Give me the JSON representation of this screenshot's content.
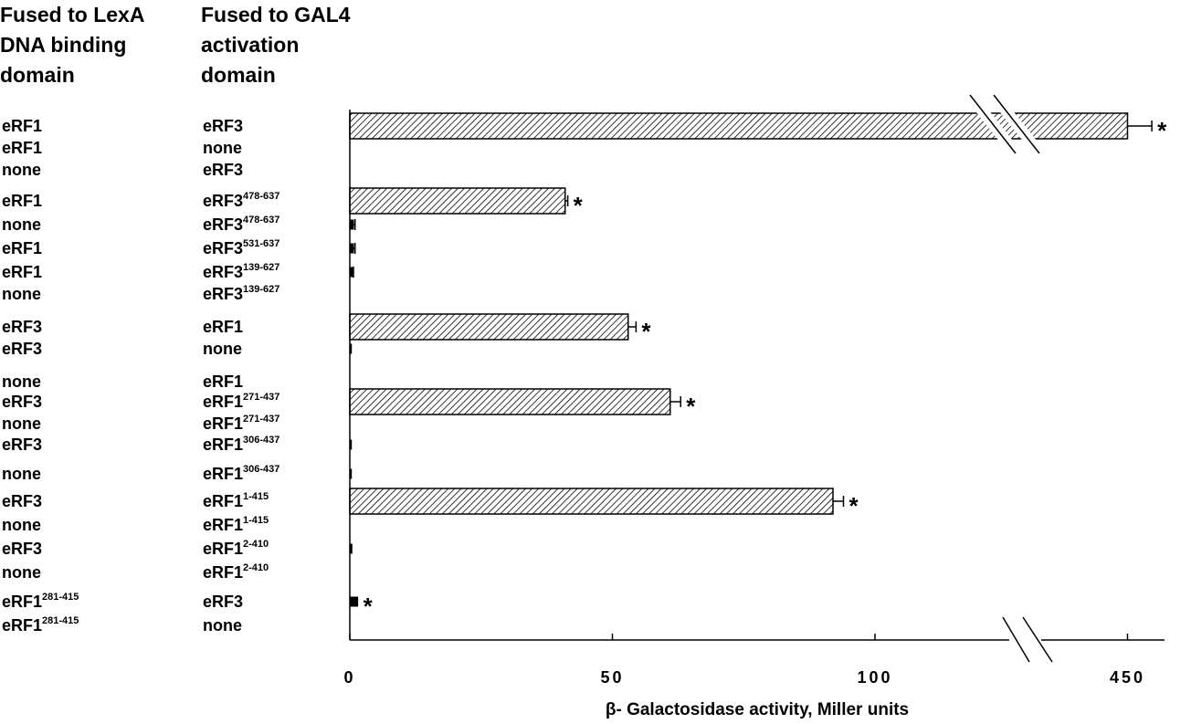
{
  "headers": {
    "lexa": [
      "Fused to LexA",
      "DNA binding",
      "domain"
    ],
    "gal4": [
      "Fused to GAL4",
      "activation",
      "domain"
    ]
  },
  "chart_data": {
    "type": "bar",
    "orientation": "horizontal",
    "xlabel": "β- Galactosidase activity, Miller units",
    "xticks": [
      "0",
      "50",
      "100",
      "450"
    ],
    "axis_break": "between 100 and 450",
    "rows": [
      {
        "lexa": "eRF1",
        "lexa_sup": "",
        "gal4": "eRF3",
        "gal4_sup": "",
        "value": 450,
        "error": 14,
        "significant": true
      },
      {
        "lexa": "eRF1",
        "lexa_sup": "",
        "gal4": "none",
        "gal4_sup": "",
        "value": 0,
        "error": 0,
        "significant": false
      },
      {
        "lexa": "none",
        "lexa_sup": "",
        "gal4": "eRF3",
        "gal4_sup": "",
        "value": 0,
        "error": 0,
        "significant": false
      },
      {
        "lexa": "eRF1",
        "lexa_sup": "",
        "gal4": "eRF3",
        "gal4_sup": "478-637",
        "value": 41,
        "error": 0.5,
        "significant": true
      },
      {
        "lexa": "none",
        "lexa_sup": "",
        "gal4": "eRF3",
        "gal4_sup": "478-637",
        "value": 0.7,
        "error": 0.3,
        "significant": false
      },
      {
        "lexa": "eRF1",
        "lexa_sup": "",
        "gal4": "eRF3",
        "gal4_sup": "531-637",
        "value": 0.7,
        "error": 0.3,
        "significant": false
      },
      {
        "lexa": "eRF1",
        "lexa_sup": "",
        "gal4": "eRF3",
        "gal4_sup": "139-627",
        "value": 0.5,
        "error": 0.2,
        "significant": false
      },
      {
        "lexa": "none",
        "lexa_sup": "",
        "gal4": "eRF3",
        "gal4_sup": "139-627",
        "value": 0,
        "error": 0,
        "significant": false
      },
      {
        "lexa": "eRF3",
        "lexa_sup": "",
        "gal4": "eRF1",
        "gal4_sup": "",
        "value": 53,
        "error": 1.5,
        "significant": true
      },
      {
        "lexa": "eRF3",
        "lexa_sup": "",
        "gal4": "none",
        "gal4_sup": "",
        "value": 0.3,
        "error": 0,
        "significant": false
      },
      {
        "lexa": "none",
        "lexa_sup": "",
        "gal4": "eRF1",
        "gal4_sup": "",
        "value": 0,
        "error": 0,
        "significant": false
      },
      {
        "lexa": "eRF3",
        "lexa_sup": "",
        "gal4": "eRF1",
        "gal4_sup": "271-437",
        "value": 61,
        "error": 2,
        "significant": true
      },
      {
        "lexa": "none",
        "lexa_sup": "",
        "gal4": "eRF1",
        "gal4_sup": "271-437",
        "value": 0,
        "error": 0,
        "significant": false
      },
      {
        "lexa": "eRF3",
        "lexa_sup": "",
        "gal4": "eRF1",
        "gal4_sup": "306-437",
        "value": 0.3,
        "error": 0,
        "significant": false
      },
      {
        "lexa": "none",
        "lexa_sup": "",
        "gal4": "eRF1",
        "gal4_sup": "306-437",
        "value": 0.3,
        "error": 0,
        "significant": false
      },
      {
        "lexa": "eRF3",
        "lexa_sup": "",
        "gal4": "eRF1",
        "gal4_sup": "1-415",
        "value": 92,
        "error": 2,
        "significant": true
      },
      {
        "lexa": "none",
        "lexa_sup": "",
        "gal4": "eRF1",
        "gal4_sup": "1-415",
        "value": 0,
        "error": 0,
        "significant": false
      },
      {
        "lexa": "eRF3",
        "lexa_sup": "",
        "gal4": "eRF1",
        "gal4_sup": "2-410",
        "value": 0.4,
        "error": 0,
        "significant": false
      },
      {
        "lexa": "none",
        "lexa_sup": "",
        "gal4": "eRF1",
        "gal4_sup": "2-410",
        "value": 0,
        "error": 0,
        "significant": false
      },
      {
        "lexa": "eRF1",
        "lexa_sup": "281-415",
        "gal4": "eRF3",
        "gal4_sup": "",
        "value": 1.5,
        "error": 0,
        "significant": true
      },
      {
        "lexa": "eRF1",
        "lexa_sup": "281-415",
        "gal4": "none",
        "gal4_sup": "",
        "value": 0,
        "error": 0,
        "significant": false
      }
    ]
  }
}
